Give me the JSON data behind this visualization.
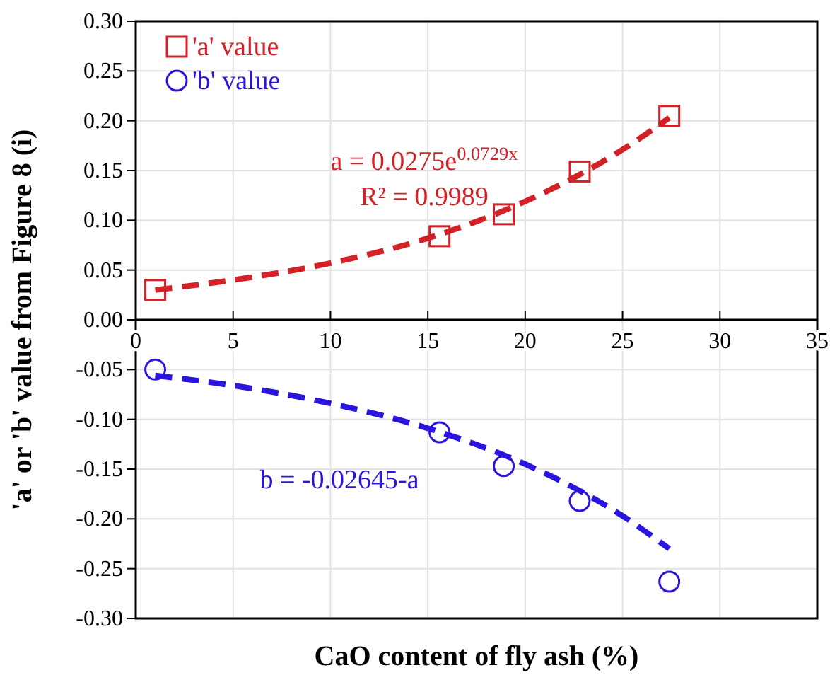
{
  "chart_data": {
    "type": "scatter",
    "xlabel": "CaO content of fly ash (%)",
    "ylabel": "'a' or 'b' value from Figure 8 (i)",
    "series": [
      {
        "name": "'a' value",
        "color": "#d42027",
        "marker": "square",
        "x": [
          1.0,
          15.6,
          18.9,
          22.8,
          27.4
        ],
        "values": [
          0.03,
          0.084,
          0.106,
          0.149,
          0.205
        ]
      },
      {
        "name": "'b' value",
        "color": "#2a14e0",
        "marker": "circle",
        "x": [
          1.0,
          15.6,
          18.9,
          22.8,
          27.4
        ],
        "values": [
          -0.05,
          -0.113,
          -0.147,
          -0.182,
          -0.263
        ]
      },
      {
        "type": "line",
        "color": "#d42027",
        "marker": "none",
        "line_style": "dashed",
        "x": [
          1,
          5,
          10,
          15,
          20,
          25,
          27.4
        ],
        "values": [
          0.03,
          0.04,
          0.057,
          0.082,
          0.119,
          0.171,
          0.203
        ]
      },
      {
        "type": "line",
        "color": "#2a14e0",
        "marker": "none",
        "line_style": "dashed",
        "x": [
          1,
          5,
          10,
          15,
          20,
          25,
          27.4
        ],
        "values": [
          -0.056,
          -0.066,
          -0.084,
          -0.109,
          -0.145,
          -0.197,
          -0.23
        ]
      }
    ],
    "annotations": [
      "a = 0.0275e$^{0.0729x}$",
      "R² = 0.9989",
      "b = -0.02645-a"
    ],
    "xlim": [
      0,
      35
    ],
    "xticks": [
      0,
      5,
      10,
      15,
      20,
      25,
      30,
      35
    ],
    "ylim": [
      -0.3,
      0.3
    ],
    "yticks": [
      {
        "value": -0.3,
        "label": "-0.30"
      },
      {
        "value": -0.25,
        "label": "-0.25"
      },
      {
        "value": -0.2,
        "label": "-0.20"
      },
      {
        "value": -0.15,
        "label": "-0.15"
      },
      {
        "value": -0.1,
        "label": "-0.10"
      },
      {
        "value": -0.05,
        "label": "-0.05"
      },
      {
        "value": 0,
        "label": "0.00"
      },
      {
        "value": 0.05,
        "label": "0.05"
      },
      {
        "value": 0.1,
        "label": "0.10"
      },
      {
        "value": 0.15,
        "label": "0.15"
      },
      {
        "value": 0.2,
        "label": "0.20"
      },
      {
        "value": 0.25,
        "label": "0.25"
      },
      {
        "value": 0.3,
        "label": "0.30"
      }
    ],
    "grid": true,
    "legend": "top left"
  }
}
